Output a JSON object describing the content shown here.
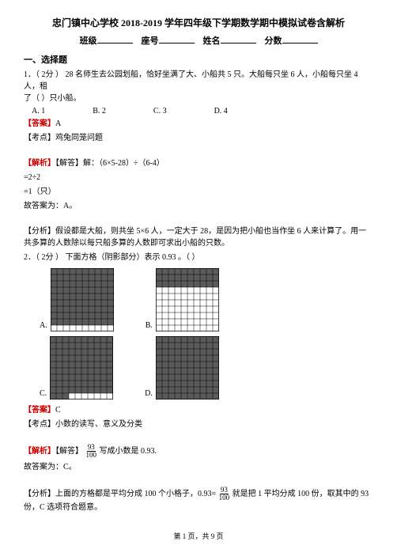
{
  "title": "忠门镇中心学校 2018-2019 学年四年级下学期数学期中模拟试卷含解析",
  "form": {
    "class_label": "班级",
    "seat_label": "座号",
    "name_label": "姓名",
    "score_label": "分数"
  },
  "section1": "一、选择题",
  "q1": {
    "stem_prefix": "1．（  2分 ）  28 名师生去公园划船，恰好坐满了大、小船共 5 只。大船每只坐 6 人，小船每只坐 4 人，租",
    "stem_line2": "了（    ）只小船。",
    "options": {
      "a": "A. 1",
      "b": "B. 2",
      "c": "C. 3",
      "d": "D. 4"
    },
    "answer_label": "【答案】",
    "answer": "A",
    "kaodian_label": "【考点】",
    "kaodian": "鸡兔同笼问题",
    "jiexi_label": "【解析】",
    "jieda_label": "【解答】",
    "jieda_line1": "解：（6×5-28）÷（6-4）",
    "jieda_line2": "=2÷2",
    "jieda_line3": "=1（只）",
    "jieda_line4": "故答案为：A。",
    "fenxi_label": "【分析】",
    "fenxi": "假设都是大船，则共坐 5×6 人，一定大于 28，是因为把小船也当作坐 6 人来计算了。用一共多算的人数除以每只船多算的人数即可求出小船的只数。"
  },
  "q2": {
    "stem": "2．（  2分 ）  下面方格（阴影部分）表示 0.93 。（    ）",
    "labels": {
      "a": "A.",
      "b": "B.",
      "c": "C.",
      "d": "D."
    },
    "answer_label": "【答案】",
    "answer": "C",
    "kaodian_label": "【考点】",
    "kaodian": "小数的读写、意义及分类",
    "jiexi_label": "【解析】",
    "jieda_label": "【解答】",
    "jieda_text1": "写成小数是 0.93.",
    "jieda_text2": "故答案为：C。",
    "fenxi_label": "【分析】",
    "fenxi_text1": "上面的方格都是平均分成 100 个小格子，0.93=",
    "fenxi_text2": "就是把 1 平均分成 100 份，取其中的 93 份，C 选项符合题意。",
    "fraction_num": "93",
    "fraction_den": "100"
  },
  "footer": "第 1 页，共 9 页",
  "grids": {
    "A": {
      "cols": 10,
      "rows": 10,
      "shaded_cells": 90,
      "show_last_row_split": false
    },
    "B": {
      "cols": 10,
      "rows": 10,
      "shaded_cells": 30,
      "show_last_row_split": false
    },
    "C": {
      "cols": 10,
      "rows": 10,
      "shaded_cells": 93,
      "show_last_row_split": true
    },
    "D": {
      "cols": 10,
      "rows": 10,
      "shaded_cells": 100,
      "show_last_row_split": false
    }
  },
  "colors": {
    "shaded": "#5a5a5a",
    "grid_line": "#000000",
    "bg": "#ffffff"
  }
}
